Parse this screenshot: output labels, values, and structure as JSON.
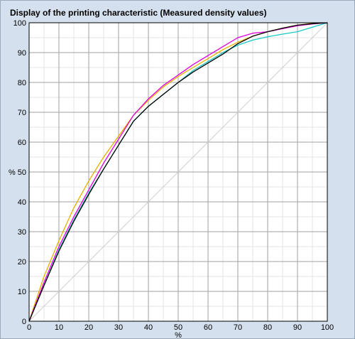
{
  "window": {
    "title": "Display of the printing characteristic (Measured density values)"
  },
  "chart_data": {
    "type": "line",
    "title": "Display of the printing characteristic (Measured density values)",
    "xlabel": "%",
    "ylabel": "%",
    "xlim": [
      0,
      100
    ],
    "ylim": [
      0,
      100
    ],
    "x_ticks": [
      0,
      10,
      20,
      30,
      40,
      50,
      60,
      70,
      80,
      90,
      100
    ],
    "y_ticks": [
      0,
      10,
      20,
      30,
      40,
      50,
      60,
      70,
      80,
      90,
      100
    ],
    "grid": true,
    "minor_grid_step": 5,
    "legend": false,
    "series": [
      {
        "key": "reference",
        "color": "#d0d0d0",
        "x": [
          0,
          100
        ],
        "y": [
          0,
          100
        ]
      },
      {
        "key": "cyan",
        "color": "#19c8c8",
        "x": [
          0,
          5,
          10,
          15,
          20,
          25,
          30,
          35,
          40,
          45,
          50,
          55,
          60,
          65,
          70,
          75,
          80,
          85,
          90,
          95,
          100
        ],
        "y": [
          0,
          12,
          24,
          34,
          43,
          51,
          59,
          67,
          72,
          76,
          80,
          84,
          87,
          90,
          92.5,
          94.2,
          95.3,
          96.2,
          97,
          98.5,
          100
        ]
      },
      {
        "key": "yellow",
        "color": "#e8b000",
        "x": [
          0,
          5,
          10,
          15,
          20,
          25,
          30,
          35,
          40,
          45,
          50,
          55,
          60,
          65,
          70,
          75,
          80,
          85,
          90,
          95,
          100
        ],
        "y": [
          0,
          15,
          27,
          38,
          47,
          55,
          62,
          69,
          74,
          78.5,
          82,
          85,
          88,
          91,
          93.5,
          95.5,
          97,
          98.2,
          99.2,
          99.8,
          100
        ]
      },
      {
        "key": "magenta",
        "color": "#e000e0",
        "x": [
          0,
          5,
          10,
          15,
          20,
          25,
          30,
          35,
          40,
          45,
          50,
          55,
          60,
          65,
          70,
          75,
          80,
          85,
          90,
          95,
          100
        ],
        "y": [
          0,
          13,
          25,
          35,
          44,
          53,
          61,
          69,
          74.5,
          79,
          82.5,
          86,
          89,
          92,
          95,
          96.5,
          97,
          98,
          99,
          99.6,
          100
        ]
      },
      {
        "key": "black",
        "color": "#000000",
        "x": [
          0,
          5,
          10,
          15,
          20,
          25,
          30,
          35,
          40,
          45,
          50,
          55,
          60,
          65,
          70,
          75,
          80,
          85,
          90,
          95,
          100
        ],
        "y": [
          0,
          12,
          23.5,
          33.5,
          42.5,
          51,
          59,
          67,
          72,
          76,
          80,
          83.5,
          86.5,
          89.5,
          93,
          95.5,
          97,
          98.2,
          99.2,
          99.7,
          100
        ]
      }
    ]
  }
}
